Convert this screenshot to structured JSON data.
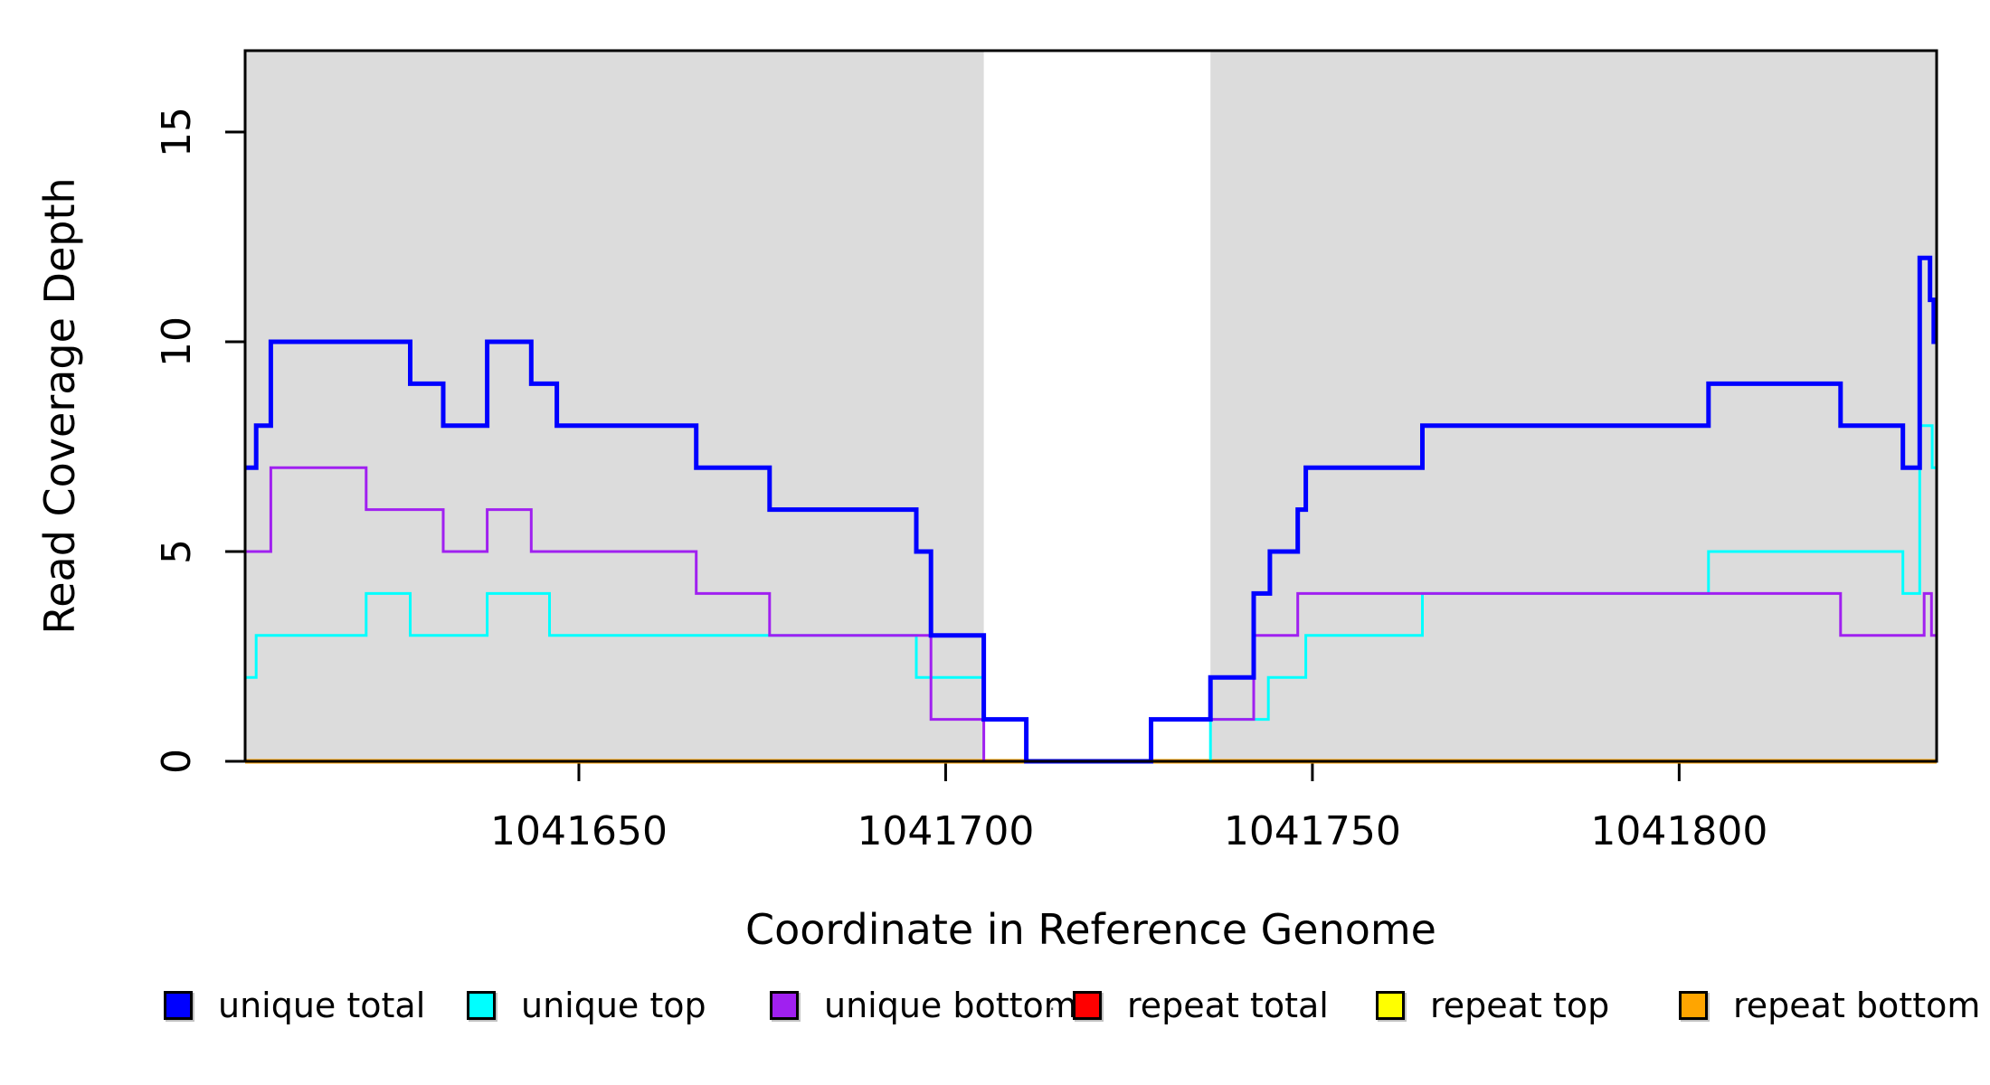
{
  "chart_data": {
    "type": "line",
    "subtype": "step-coverage",
    "title": "",
    "xlabel": "Coordinate in Reference Genome",
    "ylabel": "Read Coverage Depth",
    "xlim": [
      1041604.5,
      1041835.1
    ],
    "ylim": [
      0,
      16.94
    ],
    "x_ticks": [
      {
        "value": 1041650,
        "label": "1041650"
      },
      {
        "value": 1041700,
        "label": "1041700"
      },
      {
        "value": 1041750,
        "label": "1041750"
      },
      {
        "value": 1041800,
        "label": "1041800"
      }
    ],
    "y_ticks": [
      {
        "value": 0,
        "label": "0"
      },
      {
        "value": 5,
        "label": "5"
      },
      {
        "value": 10,
        "label": "10"
      },
      {
        "value": 15,
        "label": "15"
      }
    ],
    "grid": false,
    "frame_color": "#000000",
    "shading": {
      "color": "#DCDCDC",
      "regions": [
        [
          1041604.5,
          1041705.2
        ],
        [
          1041736.1,
          1041835.1
        ]
      ]
    },
    "series": [
      {
        "name": "repeat total",
        "color": "#FF0000",
        "line_width": 3,
        "segments": [
          [
            1041604.5,
            1041835.1,
            0
          ]
        ]
      },
      {
        "name": "repeat top",
        "color": "#FFFF00",
        "line_width": 3,
        "segments": [
          [
            1041604.5,
            1041835.1,
            0
          ]
        ]
      },
      {
        "name": "repeat bottom",
        "color": "#FFA500",
        "line_width": 5,
        "segments": [
          [
            1041604.5,
            1041835.1,
            0
          ]
        ]
      },
      {
        "name": "unique top",
        "color": "#00FFFF",
        "line_width": 3,
        "segments": [
          [
            1041604.5,
            1041606,
            2
          ],
          [
            1041606,
            1041621,
            3
          ],
          [
            1041621,
            1041627,
            4
          ],
          [
            1041627,
            1041637.5,
            3
          ],
          [
            1041637.5,
            1041646,
            4
          ],
          [
            1041646,
            1041696,
            3
          ],
          [
            1041696,
            1041705.2,
            2
          ],
          [
            1041705.2,
            1041711,
            1
          ],
          [
            1041711,
            1041736.1,
            0
          ],
          [
            1041736.1,
            1041744,
            1
          ],
          [
            1041744,
            1041749.1,
            2
          ],
          [
            1041749.1,
            1041765,
            3
          ],
          [
            1041765,
            1041804,
            4
          ],
          [
            1041804,
            1041830.5,
            5
          ],
          [
            1041830.5,
            1041832.8,
            4
          ],
          [
            1041832.8,
            1041834.5,
            8
          ],
          [
            1041834.5,
            1041835.1,
            7
          ]
        ]
      },
      {
        "name": "unique bottom",
        "color": "#A020F0",
        "line_width": 3,
        "segments": [
          [
            1041604.5,
            1041608,
            5
          ],
          [
            1041608,
            1041621,
            7
          ],
          [
            1041621,
            1041631.5,
            6
          ],
          [
            1041631.5,
            1041637.5,
            5
          ],
          [
            1041637.5,
            1041643.5,
            6
          ],
          [
            1041643.5,
            1041666,
            5
          ],
          [
            1041666,
            1041676,
            4
          ],
          [
            1041676,
            1041698,
            3
          ],
          [
            1041698,
            1041705.2,
            1
          ],
          [
            1041705.2,
            1041728,
            0
          ],
          [
            1041728,
            1041742,
            1
          ],
          [
            1041742,
            1041748,
            3
          ],
          [
            1041748,
            1041822,
            4
          ],
          [
            1041822,
            1041833.4,
            3
          ],
          [
            1041833.4,
            1041834.4,
            4
          ],
          [
            1041834.4,
            1041835.1,
            3
          ]
        ]
      },
      {
        "name": "unique total",
        "color": "#0000FF",
        "line_width": 5,
        "segments": [
          [
            1041604.5,
            1041606,
            7
          ],
          [
            1041606,
            1041608,
            8
          ],
          [
            1041608,
            1041627,
            10
          ],
          [
            1041627,
            1041631.5,
            9
          ],
          [
            1041631.5,
            1041637.5,
            8
          ],
          [
            1041637.5,
            1041643.5,
            10
          ],
          [
            1041643.5,
            1041647,
            9
          ],
          [
            1041647,
            1041666,
            8
          ],
          [
            1041666,
            1041676,
            7
          ],
          [
            1041676,
            1041696,
            6
          ],
          [
            1041696,
            1041698,
            5
          ],
          [
            1041698,
            1041705.2,
            3
          ],
          [
            1041705.2,
            1041711,
            1
          ],
          [
            1041711,
            1041728,
            0
          ],
          [
            1041728,
            1041736.1,
            1
          ],
          [
            1041736.1,
            1041742,
            2
          ],
          [
            1041742,
            1041744.2,
            4
          ],
          [
            1041744.2,
            1041748,
            5
          ],
          [
            1041748,
            1041749.1,
            6
          ],
          [
            1041749.1,
            1041765,
            7
          ],
          [
            1041765,
            1041804,
            8
          ],
          [
            1041804,
            1041822,
            9
          ],
          [
            1041822,
            1041830.5,
            8
          ],
          [
            1041830.5,
            1041832.8,
            7
          ],
          [
            1041832.8,
            1041834.2,
            12
          ],
          [
            1041834.2,
            1041834.7,
            11
          ],
          [
            1041834.7,
            1041835.1,
            10
          ]
        ]
      }
    ],
    "legend_position": "bottom"
  },
  "legend": {
    "entries": [
      {
        "label": "unique total",
        "color": "#0000FF"
      },
      {
        "label": "unique top",
        "color": "#00FFFF"
      },
      {
        "label": "unique bottom",
        "color": "#A020F0"
      },
      {
        "label": "repeat total",
        "color": "#FF0000"
      },
      {
        "label": "repeat top",
        "color": "#FFFF00"
      },
      {
        "label": "repeat bottom",
        "color": "#FFA500"
      }
    ],
    "stray_mark": "·"
  },
  "axes": {
    "xlabel": "Coordinate in Reference Genome",
    "ylabel": "Read Coverage Depth"
  }
}
